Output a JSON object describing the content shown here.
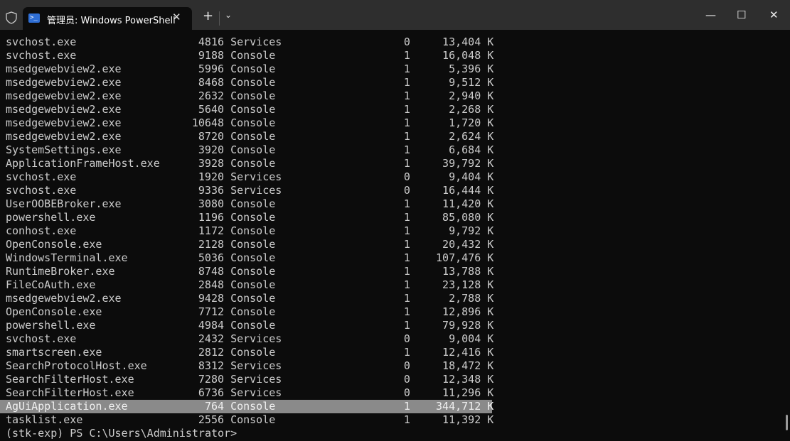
{
  "window": {
    "tab_title": "管理员: Windows PowerShell",
    "tab_icon": "powershell-icon",
    "new_tab": "+",
    "dropdown": "⌄",
    "minimize": "—",
    "maximize": "☐",
    "close": "✕"
  },
  "processes": [
    {
      "name": "svchost.exe",
      "pid": "4816",
      "session": "Services",
      "num": "0",
      "mem": "13,404 K"
    },
    {
      "name": "svchost.exe",
      "pid": "9188",
      "session": "Console",
      "num": "1",
      "mem": "16,048 K"
    },
    {
      "name": "msedgewebview2.exe",
      "pid": "5996",
      "session": "Console",
      "num": "1",
      "mem": "5,396 K"
    },
    {
      "name": "msedgewebview2.exe",
      "pid": "8468",
      "session": "Console",
      "num": "1",
      "mem": "9,512 K"
    },
    {
      "name": "msedgewebview2.exe",
      "pid": "2632",
      "session": "Console",
      "num": "1",
      "mem": "2,940 K"
    },
    {
      "name": "msedgewebview2.exe",
      "pid": "5640",
      "session": "Console",
      "num": "1",
      "mem": "2,268 K"
    },
    {
      "name": "msedgewebview2.exe",
      "pid": "10648",
      "session": "Console",
      "num": "1",
      "mem": "1,720 K"
    },
    {
      "name": "msedgewebview2.exe",
      "pid": "8720",
      "session": "Console",
      "num": "1",
      "mem": "2,624 K"
    },
    {
      "name": "SystemSettings.exe",
      "pid": "3920",
      "session": "Console",
      "num": "1",
      "mem": "6,684 K"
    },
    {
      "name": "ApplicationFrameHost.exe",
      "pid": "3928",
      "session": "Console",
      "num": "1",
      "mem": "39,792 K"
    },
    {
      "name": "svchost.exe",
      "pid": "1920",
      "session": "Services",
      "num": "0",
      "mem": "9,404 K"
    },
    {
      "name": "svchost.exe",
      "pid": "9336",
      "session": "Services",
      "num": "0",
      "mem": "16,444 K"
    },
    {
      "name": "UserOOBEBroker.exe",
      "pid": "3080",
      "session": "Console",
      "num": "1",
      "mem": "11,420 K"
    },
    {
      "name": "powershell.exe",
      "pid": "1196",
      "session": "Console",
      "num": "1",
      "mem": "85,080 K"
    },
    {
      "name": "conhost.exe",
      "pid": "1172",
      "session": "Console",
      "num": "1",
      "mem": "9,792 K"
    },
    {
      "name": "OpenConsole.exe",
      "pid": "2128",
      "session": "Console",
      "num": "1",
      "mem": "20,432 K"
    },
    {
      "name": "WindowsTerminal.exe",
      "pid": "5036",
      "session": "Console",
      "num": "1",
      "mem": "107,476 K"
    },
    {
      "name": "RuntimeBroker.exe",
      "pid": "8748",
      "session": "Console",
      "num": "1",
      "mem": "13,788 K"
    },
    {
      "name": "FileCoAuth.exe",
      "pid": "2848",
      "session": "Console",
      "num": "1",
      "mem": "23,128 K"
    },
    {
      "name": "msedgewebview2.exe",
      "pid": "9428",
      "session": "Console",
      "num": "1",
      "mem": "2,788 K"
    },
    {
      "name": "OpenConsole.exe",
      "pid": "7712",
      "session": "Console",
      "num": "1",
      "mem": "12,896 K"
    },
    {
      "name": "powershell.exe",
      "pid": "4984",
      "session": "Console",
      "num": "1",
      "mem": "79,928 K"
    },
    {
      "name": "svchost.exe",
      "pid": "2432",
      "session": "Services",
      "num": "0",
      "mem": "9,004 K"
    },
    {
      "name": "smartscreen.exe",
      "pid": "2812",
      "session": "Console",
      "num": "1",
      "mem": "12,416 K"
    },
    {
      "name": "SearchProtocolHost.exe",
      "pid": "8312",
      "session": "Services",
      "num": "0",
      "mem": "18,472 K"
    },
    {
      "name": "SearchFilterHost.exe",
      "pid": "7280",
      "session": "Services",
      "num": "0",
      "mem": "12,348 K"
    },
    {
      "name": "SearchFilterHost.exe",
      "pid": "6736",
      "session": "Services",
      "num": "0",
      "mem": "11,296 K"
    },
    {
      "name": "AgUiApplication.exe",
      "pid": "764",
      "session": "Console",
      "num": "1",
      "mem": "344,712 K",
      "selected": true
    },
    {
      "name": "tasklist.exe",
      "pid": "2556",
      "session": "Console",
      "num": "1",
      "mem": "11,392 K"
    }
  ],
  "prompt": "(stk-exp) PS C:\\Users\\Administrator>"
}
